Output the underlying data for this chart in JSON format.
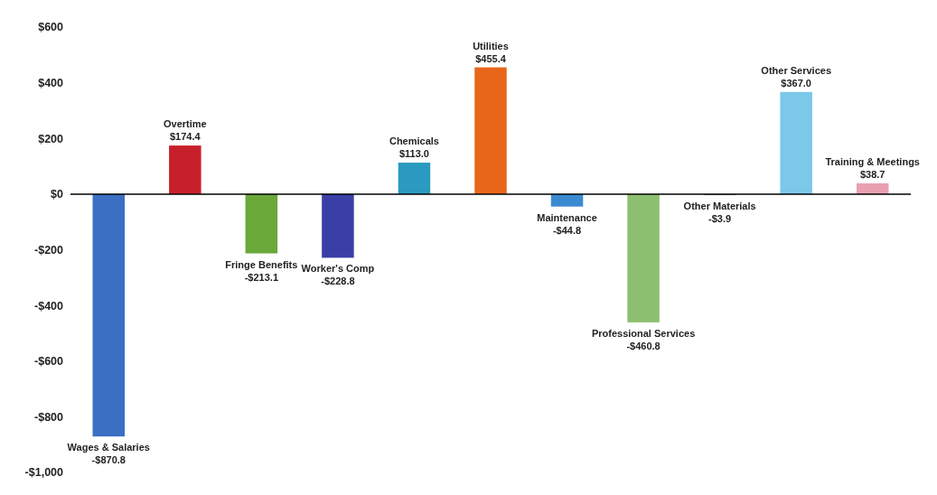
{
  "chart_data": {
    "type": "bar",
    "categories": [
      "Wages & Salaries",
      "Overtime",
      "Fringe Benefits",
      "Worker's Comp",
      "Chemicals",
      "Utilities",
      "Maintenance",
      "Professional Services",
      "Other Materials",
      "Other Services",
      "Training & Meetings"
    ],
    "values": [
      -870.8,
      174.4,
      -213.1,
      -228.8,
      113.0,
      455.4,
      -44.8,
      -460.8,
      -3.9,
      367.0,
      38.7
    ],
    "value_labels": [
      "-$870.8",
      "$174.4",
      "-$213.1",
      "-$228.8",
      "$113.0",
      "$455.4",
      "-$44.8",
      "-$460.8",
      "-$3.9",
      "$367.0",
      "$38.7"
    ],
    "colors": [
      "#3a6fc4",
      "#c8202a",
      "#6aa83a",
      "#3a3fa8",
      "#2a9ac0",
      "#e8661a",
      "#3a8ad0",
      "#8cc070",
      "#9a9a9a",
      "#7cc8ea",
      "#e8a0b0"
    ],
    "ylim": [
      -1000,
      600
    ],
    "yticks": [
      {
        "value": 600,
        "label": "$600"
      },
      {
        "value": 400,
        "label": "$400"
      },
      {
        "value": 200,
        "label": "$200"
      },
      {
        "value": 0,
        "label": "$0"
      },
      {
        "value": -200,
        "label": "-$200"
      },
      {
        "value": -400,
        "label": "-$400"
      },
      {
        "value": -600,
        "label": "-$600"
      },
      {
        "value": -800,
        "label": "-$800"
      },
      {
        "value": -1000,
        "label": "-$1,000"
      }
    ],
    "tick_labels": "y"
  }
}
